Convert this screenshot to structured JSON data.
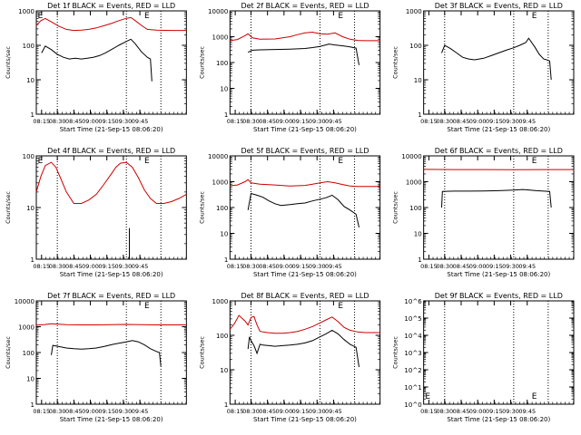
{
  "panel_title_suffix": " BLACK = Events, RED = LLD",
  "xlabel": "Start Time (21-Sep-15 08:06:20)",
  "ylabel": "Counts/sec",
  "x_ticks": [
    "08:15",
    "08:30",
    "08:45",
    "09:00",
    "09:15",
    "09:30",
    "09:45"
  ],
  "colors": {
    "events": "#000000",
    "lld": "#cc0000",
    "axis": "#000000"
  },
  "chart_data": [
    {
      "type": "line",
      "title": "Det 1f BLACK = Events, RED = LLD",
      "detector": "Det 1f",
      "ylim": [
        1,
        1000
      ],
      "y_ticks": [
        "1",
        "10",
        "100",
        "1000"
      ],
      "scale": "log",
      "markers": [
        "E",
        "E"
      ],
      "series": [
        {
          "name": "Events",
          "color": "#000000",
          "x": [
            0.035,
            0.06,
            0.1,
            0.14,
            0.18,
            0.22,
            0.26,
            0.3,
            0.34,
            0.38,
            0.42,
            0.46,
            0.5,
            0.55,
            0.6,
            0.63,
            0.66,
            0.7,
            0.74,
            0.76,
            0.77
          ],
          "y": [
            60,
            95,
            75,
            55,
            45,
            40,
            42,
            40,
            42,
            45,
            50,
            60,
            75,
            100,
            130,
            150,
            110,
            65,
            45,
            40,
            9
          ]
        },
        {
          "name": "LLD",
          "color": "#cc0000",
          "x": [
            0.0,
            0.03,
            0.06,
            0.1,
            0.15,
            0.2,
            0.25,
            0.3,
            0.35,
            0.4,
            0.45,
            0.5,
            0.55,
            0.6,
            0.63,
            0.66,
            0.7,
            0.74,
            0.8,
            0.9,
            1.0
          ],
          "y": [
            380,
            520,
            600,
            480,
            360,
            290,
            270,
            275,
            290,
            320,
            370,
            430,
            520,
            610,
            640,
            520,
            380,
            290,
            275,
            270,
            270
          ]
        }
      ]
    },
    {
      "type": "line",
      "title": "Det 2f BLACK = Events, RED = LLD",
      "detector": "Det 2f",
      "ylim": [
        1,
        10000
      ],
      "y_ticks": [
        "1",
        "10",
        "100",
        "1000",
        "10000"
      ],
      "scale": "log",
      "markers": [
        "E"
      ],
      "series": [
        {
          "name": "Events",
          "color": "#000000",
          "x": [
            0.12,
            0.15,
            0.2,
            0.3,
            0.4,
            0.5,
            0.55,
            0.6,
            0.66,
            0.7,
            0.76,
            0.8,
            0.84,
            0.86
          ],
          "y": [
            250,
            300,
            310,
            320,
            330,
            350,
            380,
            420,
            520,
            480,
            440,
            400,
            360,
            80
          ]
        },
        {
          "name": "LLD",
          "color": "#cc0000",
          "x": [
            0.0,
            0.05,
            0.1,
            0.12,
            0.15,
            0.2,
            0.3,
            0.4,
            0.45,
            0.5,
            0.55,
            0.6,
            0.65,
            0.7,
            0.75,
            0.8,
            0.85,
            0.9,
            1.0
          ],
          "y": [
            700,
            780,
            1100,
            1300,
            900,
            800,
            820,
            1000,
            1200,
            1400,
            1500,
            1300,
            1250,
            1400,
            1000,
            800,
            720,
            700,
            700
          ]
        }
      ]
    },
    {
      "type": "line",
      "title": "Det 3f BLACK = Events, RED = LLD",
      "detector": "Det 3f",
      "ylim": [
        1,
        1000
      ],
      "y_ticks": [
        "1",
        "10",
        "100",
        "1000"
      ],
      "scale": "log",
      "markers": [
        "E"
      ],
      "series": [
        {
          "name": "Events",
          "color": "#000000",
          "x": [
            0.12,
            0.14,
            0.18,
            0.22,
            0.26,
            0.3,
            0.34,
            0.4,
            0.45,
            0.5,
            0.55,
            0.6,
            0.64,
            0.68,
            0.7,
            0.74,
            0.77,
            0.8,
            0.82,
            0.84,
            0.85
          ],
          "y": [
            60,
            100,
            80,
            60,
            45,
            40,
            38,
            42,
            50,
            60,
            72,
            85,
            100,
            120,
            160,
            90,
            55,
            40,
            38,
            35,
            10
          ]
        }
      ]
    },
    {
      "type": "line",
      "title": "Det 4f BLACK = Events, RED = LLD",
      "detector": "Det 4f",
      "ylim": [
        1,
        100
      ],
      "y_ticks": [
        "1",
        "10",
        "100"
      ],
      "scale": "log",
      "markers": [
        "E",
        "E"
      ],
      "series": [
        {
          "name": "Events",
          "color": "#000000",
          "x": [
            0.62,
            0.62
          ],
          "y": [
            4.0,
            1.0
          ]
        },
        {
          "name": "LLD",
          "color": "#cc0000",
          "x": [
            0.0,
            0.03,
            0.06,
            0.1,
            0.13,
            0.16,
            0.2,
            0.25,
            0.3,
            0.35,
            0.4,
            0.45,
            0.5,
            0.53,
            0.56,
            0.6,
            0.64,
            0.68,
            0.72,
            0.76,
            0.8,
            0.85,
            0.9,
            0.95,
            1.0
          ],
          "y": [
            20,
            40,
            65,
            75,
            60,
            38,
            20,
            12,
            12,
            14,
            18,
            28,
            45,
            60,
            72,
            75,
            60,
            38,
            22,
            15,
            12,
            12,
            13,
            15,
            18
          ]
        }
      ]
    },
    {
      "type": "line",
      "title": "Det 5f BLACK = Events, RED = LLD",
      "detector": "Det 5f",
      "ylim": [
        1,
        10000
      ],
      "y_ticks": [
        "1",
        "10",
        "100",
        "1000",
        "10000"
      ],
      "scale": "log",
      "markers": [
        "E"
      ],
      "series": [
        {
          "name": "Events",
          "color": "#000000",
          "x": [
            0.12,
            0.14,
            0.18,
            0.22,
            0.26,
            0.3,
            0.34,
            0.4,
            0.45,
            0.5,
            0.55,
            0.6,
            0.64,
            0.68,
            0.72,
            0.76,
            0.8,
            0.84,
            0.86
          ],
          "y": [
            80,
            350,
            300,
            250,
            180,
            140,
            120,
            130,
            140,
            150,
            180,
            210,
            240,
            300,
            200,
            110,
            80,
            55,
            17
          ]
        },
        {
          "name": "LLD",
          "color": "#cc0000",
          "x": [
            0.0,
            0.05,
            0.1,
            0.12,
            0.14,
            0.2,
            0.3,
            0.4,
            0.5,
            0.55,
            0.6,
            0.65,
            0.7,
            0.75,
            0.8,
            0.85,
            0.9,
            1.0
          ],
          "y": [
            700,
            750,
            1000,
            1200,
            900,
            800,
            750,
            680,
            720,
            800,
            900,
            1000,
            900,
            780,
            680,
            650,
            650,
            650
          ]
        }
      ]
    },
    {
      "type": "line",
      "title": "Det 6f BLACK = Events, RED = LLD",
      "detector": "Det 6f",
      "ylim": [
        1,
        10000
      ],
      "y_ticks": [
        "1",
        "10",
        "100",
        "1000",
        "10000"
      ],
      "scale": "log",
      "markers": [
        "E"
      ],
      "series": [
        {
          "name": "Events",
          "color": "#000000",
          "x": [
            0.12,
            0.125,
            0.2,
            0.3,
            0.4,
            0.5,
            0.6,
            0.66,
            0.7,
            0.75,
            0.8,
            0.84,
            0.85
          ],
          "y": [
            100,
            420,
            430,
            430,
            440,
            450,
            470,
            500,
            480,
            450,
            430,
            420,
            100
          ]
        },
        {
          "name": "LLD",
          "color": "#cc0000",
          "x": [
            0.0,
            0.2,
            0.4,
            0.6,
            0.8,
            1.0
          ],
          "y": [
            3000,
            2950,
            2950,
            2900,
            2950,
            2950
          ]
        }
      ]
    },
    {
      "type": "line",
      "title": "Det 7f BLACK = Events, RED = LLD",
      "detector": "Det 7f",
      "ylim": [
        1,
        10000
      ],
      "y_ticks": [
        "1",
        "10",
        "100",
        "1000",
        "10000"
      ],
      "scale": "log",
      "markers": [
        "E"
      ],
      "series": [
        {
          "name": "Events",
          "color": "#000000",
          "x": [
            0.1,
            0.11,
            0.15,
            0.2,
            0.25,
            0.3,
            0.35,
            0.4,
            0.45,
            0.5,
            0.55,
            0.6,
            0.64,
            0.68,
            0.72,
            0.76,
            0.8,
            0.82,
            0.83
          ],
          "y": [
            80,
            190,
            170,
            150,
            140,
            135,
            140,
            150,
            170,
            200,
            230,
            260,
            290,
            260,
            200,
            140,
            110,
            100,
            30
          ]
        },
        {
          "name": "LLD",
          "color": "#cc0000",
          "x": [
            0.0,
            0.05,
            0.1,
            0.2,
            0.3,
            0.4,
            0.5,
            0.6,
            0.7,
            0.8,
            0.9,
            1.0
          ],
          "y": [
            1150,
            1200,
            1300,
            1200,
            1180,
            1180,
            1200,
            1220,
            1200,
            1180,
            1180,
            1180
          ]
        }
      ]
    },
    {
      "type": "line",
      "title": "Det 8f BLACK = Events, RED = LLD",
      "detector": "Det 8f",
      "ylim": [
        1,
        1000
      ],
      "y_ticks": [
        "1",
        "10",
        "100",
        "1000"
      ],
      "scale": "log",
      "markers": [
        "E"
      ],
      "series": [
        {
          "name": "Events",
          "color": "#000000",
          "x": [
            0.12,
            0.13,
            0.14,
            0.16,
            0.18,
            0.2,
            0.22,
            0.26,
            0.3,
            0.35,
            0.4,
            0.45,
            0.5,
            0.55,
            0.6,
            0.64,
            0.68,
            0.72,
            0.76,
            0.8,
            0.84,
            0.86
          ],
          "y": [
            40,
            90,
            70,
            50,
            30,
            55,
            52,
            50,
            48,
            50,
            52,
            55,
            60,
            70,
            90,
            110,
            140,
            110,
            75,
            55,
            45,
            12
          ]
        },
        {
          "name": "LLD",
          "color": "#cc0000",
          "x": [
            0.0,
            0.03,
            0.06,
            0.1,
            0.12,
            0.14,
            0.16,
            0.18,
            0.2,
            0.25,
            0.3,
            0.35,
            0.4,
            0.45,
            0.5,
            0.55,
            0.6,
            0.64,
            0.68,
            0.72,
            0.76,
            0.8,
            0.85,
            0.9,
            1.0
          ],
          "y": [
            150,
            220,
            380,
            260,
            200,
            330,
            350,
            200,
            130,
            120,
            115,
            115,
            120,
            130,
            150,
            180,
            230,
            280,
            340,
            250,
            170,
            140,
            125,
            120,
            120
          ]
        }
      ]
    },
    {
      "type": "line",
      "title": "Det 9f BLACK = Events, RED = LLD",
      "detector": "Det 9f",
      "ylim": [
        1,
        1000000
      ],
      "y_ticks": [
        "10^0",
        "10^1",
        "10^2",
        "10^3",
        "10^4",
        "10^5",
        "10^6"
      ],
      "scale": "log",
      "markers": [
        "E",
        "E"
      ],
      "series": []
    }
  ]
}
